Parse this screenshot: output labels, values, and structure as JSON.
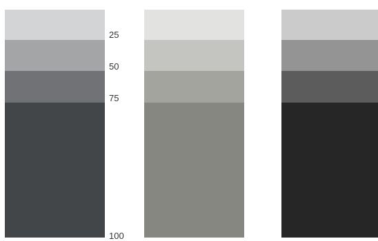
{
  "scale": {
    "labels": [
      "25",
      "50",
      "75",
      "100"
    ]
  },
  "palettes": [
    {
      "name_hint": "slate",
      "swatches": [
        "#d2d4d6",
        "#a3a5a7",
        "#707275",
        "#424649"
      ]
    },
    {
      "name_hint": "warm-gray",
      "swatches": [
        "#e2e2e0",
        "#c4c4c1",
        "#a4a49f",
        "#868781"
      ]
    },
    {
      "name_hint": "neutral",
      "swatches": [
        "#cbcbcb",
        "#949494",
        "#5c5c5c",
        "#262626"
      ]
    }
  ]
}
